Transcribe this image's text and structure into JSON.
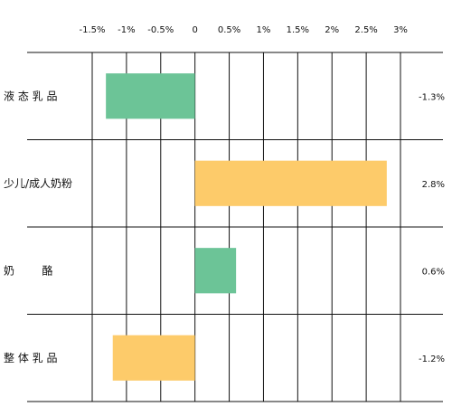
{
  "chart_data": {
    "type": "bar",
    "orientation": "horizontal",
    "title": "",
    "xlabel": "",
    "ylabel": "",
    "xlim": [
      -1.5,
      3
    ],
    "ticks": [
      -1.5,
      -1,
      -0.5,
      0,
      0.5,
      1,
      1.5,
      2,
      2.5,
      3
    ],
    "tick_labels": [
      "-1.5%",
      "-1%",
      "-0.5%",
      "0",
      "0.5%",
      "1%",
      "1.5%",
      "2%",
      "2.5%",
      "3%"
    ],
    "grid": true,
    "categories": [
      "液 态 乳 品",
      "少儿/成人奶粉",
      "奶        酪",
      "整 体 乳 品"
    ],
    "values": [
      -1.3,
      2.8,
      0.6,
      -1.2
    ],
    "value_labels": [
      "-1.3%",
      "2.8%",
      "0.6%",
      "-1.2%"
    ],
    "colors": [
      "#6cc497",
      "#fdcb6a",
      "#6cc497",
      "#fdcb6a"
    ]
  }
}
